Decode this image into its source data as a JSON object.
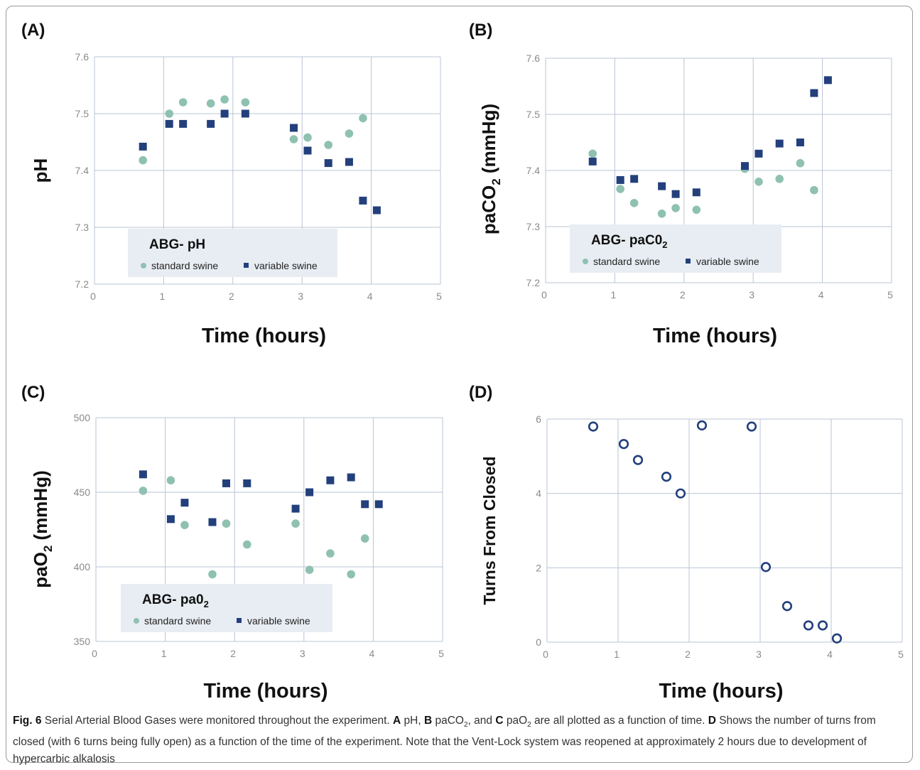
{
  "colors": {
    "standard": "#8fc1b0",
    "variable": "#23407c",
    "turns": "#23407c"
  },
  "legend_labels": {
    "standard": "standard swine",
    "variable": "variable swine"
  },
  "chart_data": [
    {
      "id": "A",
      "type": "scatter",
      "letter": "(A)",
      "xlabel": "Time (hours)",
      "ylabel": "pH",
      "xlim": [
        0,
        5
      ],
      "ylim": [
        7.2,
        7.6
      ],
      "xticks": [
        0,
        1,
        2,
        3,
        4,
        5
      ],
      "yticks": [
        7.2,
        7.3,
        7.4,
        7.5,
        7.6
      ],
      "legend_title": "ABG- pH",
      "series": [
        {
          "name": "standard swine",
          "key": "standard",
          "x": [
            0.7,
            1.08,
            1.28,
            1.68,
            1.88,
            2.18,
            2.88,
            3.08,
            3.38,
            3.68,
            3.88
          ],
          "y": [
            7.418,
            7.5,
            7.52,
            7.518,
            7.525,
            7.52,
            7.455,
            7.458,
            7.445,
            7.465,
            7.492
          ]
        },
        {
          "name": "variable swine",
          "key": "variable",
          "x": [
            0.7,
            1.08,
            1.28,
            1.68,
            1.88,
            2.18,
            2.88,
            3.08,
            3.38,
            3.68,
            3.88,
            4.08
          ],
          "y": [
            7.442,
            7.482,
            7.482,
            7.482,
            7.5,
            7.5,
            7.475,
            7.435,
            7.413,
            7.415,
            7.347,
            7.33
          ]
        }
      ]
    },
    {
      "id": "B",
      "type": "scatter",
      "letter": "(B)",
      "xlabel": "Time (hours)",
      "ylabel_main": "paCO",
      "ylabel_sub": "2",
      "ylabel_tail": " (mmHg)",
      "xlim": [
        0,
        5
      ],
      "ylim": [
        7.2,
        7.6
      ],
      "xticks": [
        0,
        1,
        2,
        3,
        4,
        5
      ],
      "yticks": [
        7.2,
        7.3,
        7.4,
        7.5,
        7.6
      ],
      "legend_title_main": "ABG- paC0",
      "legend_title_sub": "2",
      "series": [
        {
          "name": "standard swine",
          "key": "standard",
          "x": [
            0.68,
            1.08,
            1.28,
            1.68,
            1.88,
            2.18,
            2.88,
            3.08,
            3.38,
            3.68,
            3.88
          ],
          "y": [
            7.43,
            7.367,
            7.342,
            7.323,
            7.333,
            7.33,
            7.403,
            7.38,
            7.385,
            7.413,
            7.365
          ]
        },
        {
          "name": "variable swine",
          "key": "variable",
          "x": [
            0.68,
            1.08,
            1.28,
            1.68,
            1.88,
            2.18,
            2.88,
            3.08,
            3.38,
            3.68,
            3.88,
            4.08
          ],
          "y": [
            7.416,
            7.383,
            7.385,
            7.372,
            7.358,
            7.361,
            7.408,
            7.43,
            7.448,
            7.45,
            7.538,
            7.561
          ]
        }
      ]
    },
    {
      "id": "C",
      "type": "scatter",
      "letter": "(C)",
      "xlabel": "Time (hours)",
      "ylabel_main": "paO",
      "ylabel_sub": "2",
      "ylabel_tail": " (mmHg)",
      "xlim": [
        0,
        5
      ],
      "ylim": [
        350,
        500
      ],
      "xticks": [
        0,
        1,
        2,
        3,
        4,
        5
      ],
      "yticks": [
        350,
        400,
        450,
        500
      ],
      "legend_title_main": "ABG- pa0",
      "legend_title_sub": "2",
      "series": [
        {
          "name": "standard swine",
          "key": "standard",
          "x": [
            0.68,
            1.08,
            1.28,
            1.68,
            1.88,
            2.18,
            2.88,
            3.08,
            3.38,
            3.68,
            3.88
          ],
          "y": [
            451,
            458,
            428,
            395,
            429,
            415,
            429,
            398,
            409,
            395,
            419
          ]
        },
        {
          "name": "variable swine",
          "key": "variable",
          "x": [
            0.68,
            1.08,
            1.28,
            1.68,
            1.88,
            2.18,
            2.88,
            3.08,
            3.38,
            3.68,
            3.88,
            4.08
          ],
          "y": [
            462,
            432,
            443,
            430,
            456,
            456,
            439,
            450,
            458,
            460,
            442,
            442
          ]
        }
      ]
    },
    {
      "id": "D",
      "type": "scatter",
      "letter": "(D)",
      "xlabel": "Time (hours)",
      "ylabel": "Turns From Closed",
      "xlim": [
        0,
        5
      ],
      "ylim": [
        0,
        6
      ],
      "xticks": [
        0,
        1,
        2,
        3,
        4,
        5
      ],
      "yticks": [
        0,
        2,
        4,
        6
      ],
      "series": [
        {
          "key": "turns",
          "marker": "open-circle",
          "x": [
            0.65,
            1.08,
            1.28,
            1.68,
            1.88,
            2.18,
            2.88,
            3.08,
            3.38,
            3.68,
            3.88,
            4.08
          ],
          "y": [
            5.8,
            5.33,
            4.9,
            4.45,
            4.0,
            5.83,
            5.8,
            2.02,
            0.97,
            0.45,
            0.45,
            0.1
          ]
        }
      ]
    }
  ],
  "caption": {
    "fig_label": "Fig. 6",
    "text_1": "  Serial Arterial Blood Gases were monitored throughout the experiment. ",
    "A": "A",
    "text_2": " pH, ",
    "B": "B",
    "text_3": " paCO",
    "sub_1": "2",
    "text_4": ", and ",
    "C": "C",
    "text_5": " paO",
    "sub_2": "2",
    "text_6": " are all plotted as a function of time. ",
    "D": "D",
    "text_7": " Shows the number of turns from closed (with 6 turns being fully open) as a function of the time of the experiment. Note that the Vent-Lock system was reopened at approximately 2 hours due to development of hypercarbic alkalosis"
  }
}
